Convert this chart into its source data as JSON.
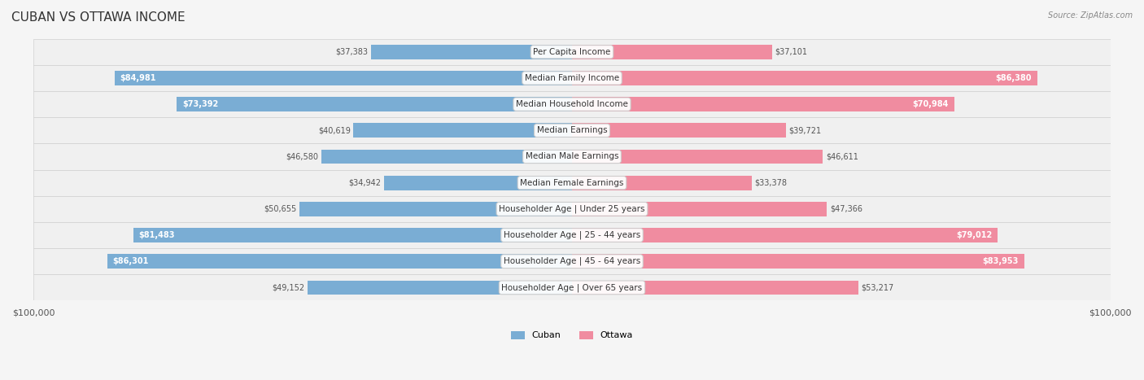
{
  "title": "CUBAN VS OTTAWA INCOME",
  "source": "Source: ZipAtlas.com",
  "categories": [
    "Per Capita Income",
    "Median Family Income",
    "Median Household Income",
    "Median Earnings",
    "Median Male Earnings",
    "Median Female Earnings",
    "Householder Age | Under 25 years",
    "Householder Age | 25 - 44 years",
    "Householder Age | 45 - 64 years",
    "Householder Age | Over 65 years"
  ],
  "cuban_values": [
    37383,
    84981,
    73392,
    40619,
    46580,
    34942,
    50655,
    81483,
    86301,
    49152
  ],
  "ottawa_values": [
    37101,
    86380,
    70984,
    39721,
    46611,
    33378,
    47366,
    79012,
    83953,
    53217
  ],
  "cuban_labels": [
    "$37,383",
    "$84,981",
    "$73,392",
    "$40,619",
    "$46,580",
    "$34,942",
    "$50,655",
    "$81,483",
    "$86,301",
    "$49,152"
  ],
  "ottawa_labels": [
    "$37,101",
    "$86,380",
    "$70,984",
    "$39,721",
    "$46,611",
    "$33,378",
    "$47,366",
    "$79,012",
    "$83,953",
    "$53,217"
  ],
  "max_value": 100000,
  "cuban_color": "#7aadd4",
  "ottawa_color": "#f08ca0",
  "cuban_color_dark": "#5b9cc9",
  "ottawa_color_dark": "#e8607a",
  "cuban_label_color_dark": "#5b9cc9",
  "ottawa_label_color_dark": "#e8607a",
  "bg_color": "#f5f5f5",
  "row_bg": "#ececec",
  "bar_height": 0.55,
  "figsize": [
    14.06,
    4.67
  ],
  "dpi": 100
}
